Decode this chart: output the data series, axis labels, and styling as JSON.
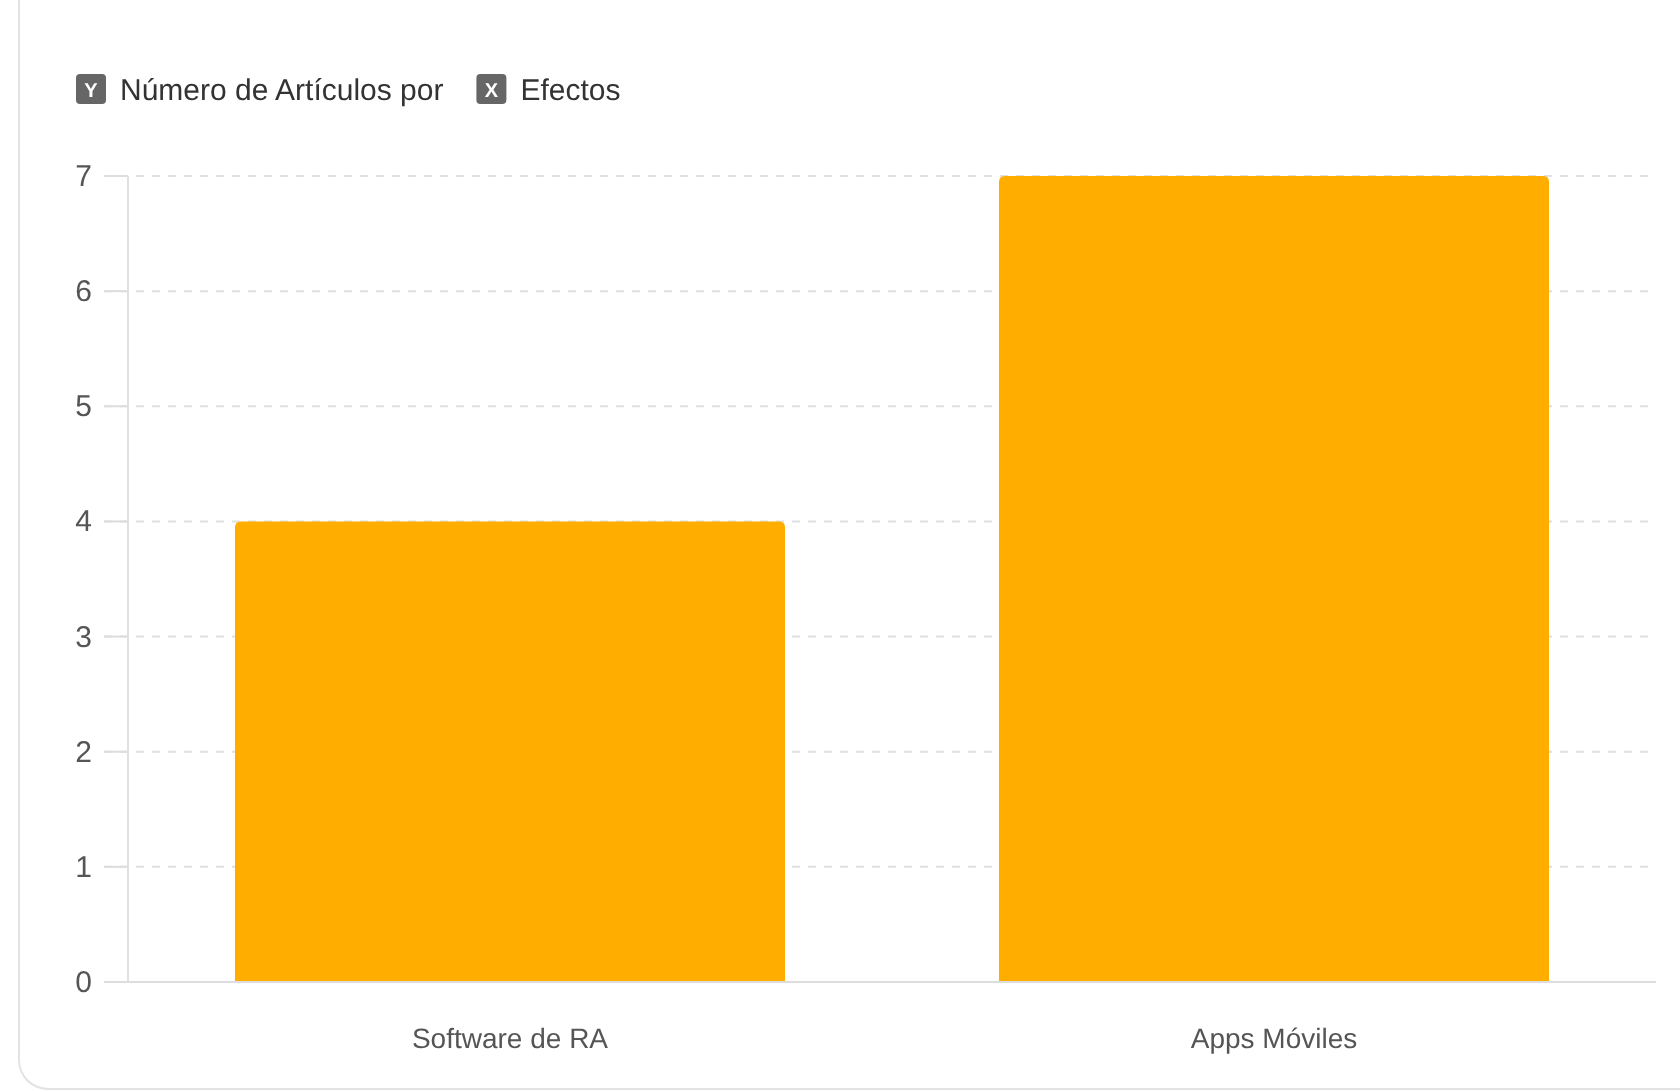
{
  "chart_data": {
    "type": "bar",
    "ylabel": "Número de Artículos por",
    "xlabel": "Efectos",
    "categories": [
      "Software de RA",
      "Apps Móviles"
    ],
    "values": [
      4,
      7
    ],
    "color": "#ffae00",
    "ylim": [
      0,
      7
    ],
    "yticks": [
      0,
      1,
      2,
      3,
      4,
      5,
      6,
      7
    ],
    "grid": "y",
    "annotations": [
      "Y",
      "X"
    ]
  }
}
